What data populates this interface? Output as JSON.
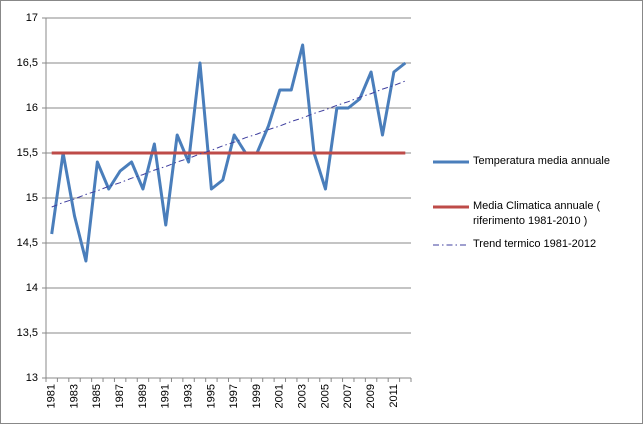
{
  "chart_data": {
    "type": "line",
    "categories": [
      "1981",
      null,
      "1983",
      null,
      "1985",
      null,
      "1987",
      null,
      "1989",
      null,
      "1991",
      null,
      "1993",
      null,
      "1995",
      null,
      "1997",
      null,
      "1999",
      null,
      "2001",
      null,
      "2003",
      null,
      "2005",
      null,
      "2007",
      null,
      "2009",
      null,
      "2011",
      null
    ],
    "series": [
      {
        "name": "Temperatura media annuale",
        "color": "#4a7ebb",
        "style": "solid",
        "values": [
          14.6,
          15.5,
          14.8,
          14.3,
          15.4,
          15.1,
          15.3,
          15.4,
          15.1,
          15.6,
          14.7,
          15.7,
          15.4,
          16.5,
          15.1,
          15.2,
          15.7,
          15.5,
          15.5,
          15.8,
          16.2,
          16.2,
          16.7,
          15.5,
          15.1,
          16.0,
          16.0,
          16.1,
          16.4,
          15.7,
          16.4,
          16.5
        ]
      },
      {
        "name": "Media Climatica annuale ( riferimento 1981-2010 )",
        "color": "#be4b48",
        "style": "solid",
        "values": [
          15.5,
          15.5,
          15.5,
          15.5,
          15.5,
          15.5,
          15.5,
          15.5,
          15.5,
          15.5,
          15.5,
          15.5,
          15.5,
          15.5,
          15.5,
          15.5,
          15.5,
          15.5,
          15.5,
          15.5,
          15.5,
          15.5,
          15.5,
          15.5,
          15.5,
          15.5,
          15.5,
          15.5,
          15.5,
          15.5,
          15.5,
          15.5
        ]
      },
      {
        "name": "Trend termico 1981-2012",
        "color": "#3f3f9f",
        "style": "dashdot",
        "values": [
          14.9,
          14.95,
          14.99,
          15.04,
          15.08,
          15.13,
          15.17,
          15.22,
          15.26,
          15.31,
          15.35,
          15.4,
          15.44,
          15.49,
          15.53,
          15.58,
          15.62,
          15.67,
          15.71,
          15.76,
          15.8,
          15.85,
          15.89,
          15.94,
          15.98,
          16.03,
          16.07,
          16.12,
          16.16,
          16.21,
          16.25,
          16.3
        ]
      }
    ],
    "ylim": [
      13,
      17
    ],
    "yticks": [
      13,
      {
        "value": 13.5,
        "label": "13,5"
      },
      14,
      {
        "value": 14.5,
        "label": "14,5"
      },
      15,
      {
        "value": 15.5,
        "label": "15,5"
      },
      16,
      {
        "value": 16.5,
        "label": "16,5"
      },
      17
    ],
    "grid": true,
    "legend": "right"
  }
}
